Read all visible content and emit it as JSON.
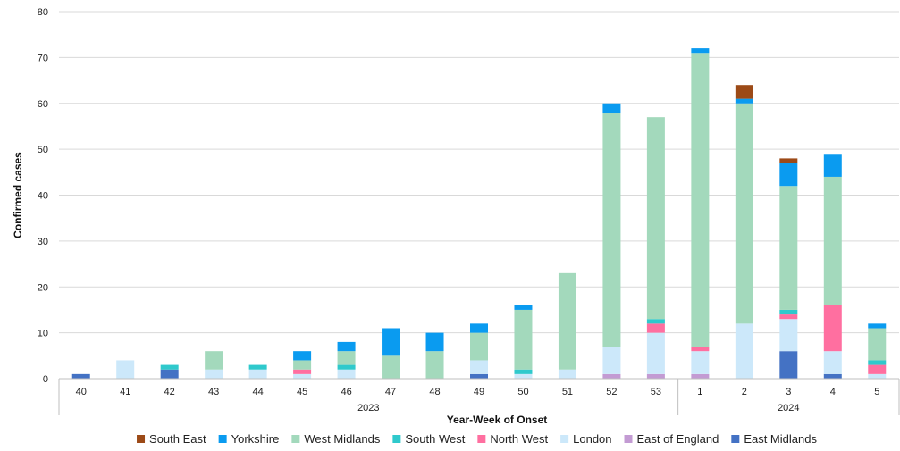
{
  "chart_data": {
    "type": "bar",
    "stacked": true,
    "ylabel": "Confirmed cases",
    "xlabel": "Year-Week of Onset",
    "ylim": [
      0,
      80
    ],
    "yticks": [
      0,
      10,
      20,
      30,
      40,
      50,
      60,
      70,
      80
    ],
    "grid": true,
    "legend_position": "bottom",
    "categories": [
      "40",
      "41",
      "42",
      "43",
      "44",
      "45",
      "46",
      "47",
      "48",
      "49",
      "50",
      "51",
      "52",
      "53",
      "1",
      "2",
      "3",
      "4",
      "5"
    ],
    "year_groups": [
      {
        "label": "2023",
        "start": 0,
        "end": 13
      },
      {
        "label": "2024",
        "start": 14,
        "end": 18
      }
    ],
    "series": [
      {
        "name": "East Midlands",
        "color": "#4472c4",
        "values": [
          1,
          0,
          2,
          0,
          0,
          0,
          0,
          0,
          0,
          1,
          0,
          0,
          0,
          0,
          0,
          0,
          6,
          1,
          0
        ]
      },
      {
        "name": "East of England",
        "color": "#c39bd3",
        "values": [
          0,
          0,
          0,
          0,
          0,
          0,
          0,
          0,
          0,
          0,
          0,
          0,
          1,
          1,
          1,
          0,
          0,
          0,
          0
        ]
      },
      {
        "name": "London",
        "color": "#cce8fa",
        "values": [
          0,
          4,
          0,
          2,
          2,
          1,
          2,
          0,
          0,
          3,
          1,
          2,
          6,
          9,
          5,
          12,
          7,
          5,
          1
        ]
      },
      {
        "name": "North West",
        "color": "#ff6fa0",
        "values": [
          0,
          0,
          0,
          0,
          0,
          1,
          0,
          0,
          0,
          0,
          0,
          0,
          0,
          2,
          1,
          0,
          1,
          10,
          2
        ]
      },
      {
        "name": "South West",
        "color": "#2fc9cc",
        "values": [
          0,
          0,
          1,
          0,
          1,
          0,
          1,
          0,
          0,
          0,
          1,
          0,
          0,
          1,
          0,
          0,
          1,
          0,
          1
        ]
      },
      {
        "name": "West Midlands",
        "color": "#a3d9bc",
        "values": [
          0,
          0,
          0,
          4,
          0,
          2,
          3,
          5,
          6,
          6,
          13,
          21,
          51,
          44,
          64,
          48,
          27,
          28,
          7
        ]
      },
      {
        "name": "Yorkshire",
        "color": "#0a9bf0",
        "values": [
          0,
          0,
          0,
          0,
          0,
          2,
          2,
          6,
          4,
          2,
          1,
          0,
          2,
          0,
          1,
          1,
          5,
          5,
          1
        ]
      },
      {
        "name": "South East",
        "color": "#9c4a17",
        "values": [
          0,
          0,
          0,
          0,
          0,
          0,
          0,
          0,
          0,
          0,
          0,
          0,
          0,
          0,
          0,
          3,
          1,
          0,
          0
        ]
      }
    ],
    "legend_order": [
      "South East",
      "Yorkshire",
      "West Midlands",
      "South West",
      "North West",
      "London",
      "East of England",
      "East Midlands"
    ]
  }
}
